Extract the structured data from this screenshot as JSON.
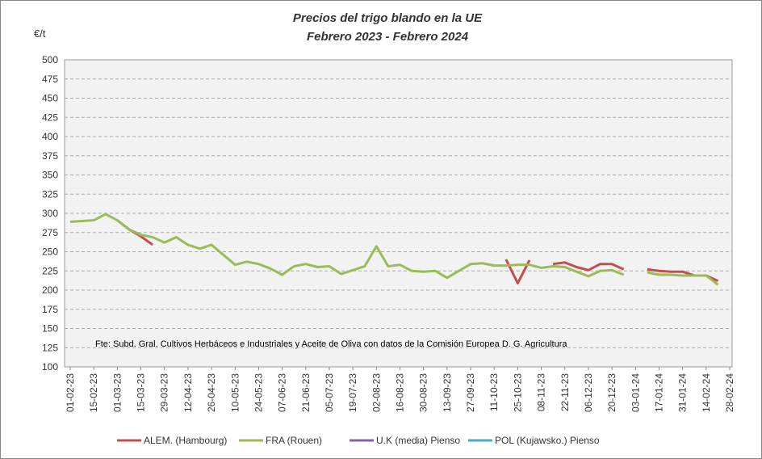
{
  "chart_data": {
    "type": "line",
    "title": "Precios del trigo blando en la UE",
    "subtitle": "Febrero 2023 - Febrero 2024",
    "y_label": "€/t",
    "annotation": "Fte: Subd. Gral. Cultivos Herbáceos e Industriales y Aceite de Oliva con  datos de la Comisión Europea D.  G. Agricultura",
    "categories": [
      "01-02-23",
      null,
      "15-02-23",
      null,
      "01-03-23",
      null,
      "15-03-23",
      null,
      "29-03-23",
      null,
      "12-04-23",
      null,
      "26-04-23",
      null,
      "10-05-23",
      null,
      "24-05-23",
      null,
      "07-06-23",
      null,
      "21-06-23",
      null,
      "05-07-23",
      null,
      "19-07-23",
      null,
      "02-08-23",
      null,
      "16-08-23",
      null,
      "30-08-23",
      null,
      "13-09-23",
      null,
      "27-09-23",
      null,
      "11-10-23",
      null,
      "25-10-23",
      null,
      "08-11-23",
      null,
      "22-11-23",
      null,
      "06-12-23",
      null,
      "20-12-23",
      null,
      "03-01-24",
      null,
      "17-01-24",
      null,
      "31-01-24",
      null,
      "14-02-24",
      null,
      "28-02-24"
    ],
    "series": [
      {
        "name": "ALEM. (Hambourg)",
        "color": "#c0504d",
        "values": [
          null,
          null,
          null,
          null,
          291,
          279,
          270,
          259,
          null,
          null,
          null,
          null,
          null,
          null,
          null,
          null,
          null,
          null,
          null,
          null,
          null,
          null,
          null,
          null,
          null,
          null,
          null,
          null,
          null,
          null,
          null,
          null,
          null,
          null,
          null,
          null,
          null,
          240,
          209,
          239,
          null,
          234,
          236,
          230,
          226,
          234,
          234,
          227,
          null,
          227,
          225,
          224,
          224,
          219,
          219,
          212,
          null
        ]
      },
      {
        "name": "FRA (Rouen)",
        "color": "#9bbb59",
        "values": [
          289,
          290,
          291,
          299,
          291,
          279,
          272,
          269,
          262,
          269,
          259,
          254,
          259,
          246,
          233,
          237,
          234,
          228,
          220,
          231,
          234,
          230,
          231,
          221,
          226,
          231,
          257,
          231,
          233,
          225,
          224,
          225,
          216,
          225,
          234,
          235,
          232,
          232,
          233,
          233,
          229,
          231,
          230,
          224,
          218,
          225,
          226,
          220,
          null,
          223,
          220,
          220,
          219,
          219,
          219,
          207,
          null
        ]
      },
      {
        "name": "U.K (media) Pienso",
        "color": "#8064a2",
        "values": [
          null,
          null,
          null,
          null,
          null,
          null,
          null,
          null,
          null,
          null,
          null,
          null,
          null,
          null,
          null,
          null,
          null,
          null,
          null,
          null,
          null,
          null,
          null,
          null,
          null,
          null,
          null,
          null,
          null,
          null,
          null,
          null,
          null,
          null,
          null,
          null,
          null,
          null,
          null,
          null,
          null,
          null,
          null,
          null,
          null,
          null,
          null,
          null,
          null,
          null,
          null,
          null,
          null,
          null,
          null,
          null,
          null
        ]
      },
      {
        "name": "POL (Kujawsko.) Pienso",
        "color": "#4bacc6",
        "values": [
          null,
          null,
          null,
          null,
          null,
          null,
          null,
          null,
          null,
          null,
          null,
          null,
          null,
          null,
          null,
          null,
          null,
          null,
          null,
          null,
          null,
          null,
          null,
          null,
          null,
          null,
          null,
          null,
          null,
          null,
          null,
          null,
          null,
          null,
          null,
          null,
          null,
          null,
          null,
          null,
          null,
          null,
          null,
          null,
          null,
          null,
          null,
          null,
          null,
          null,
          null,
          null,
          null,
          null,
          null,
          null,
          null
        ]
      }
    ],
    "ylim": [
      100,
      500
    ],
    "yticks": [
      100,
      125,
      150,
      175,
      200,
      225,
      250,
      275,
      300,
      325,
      350,
      375,
      400,
      425,
      450,
      475,
      500
    ],
    "grid": true
  }
}
